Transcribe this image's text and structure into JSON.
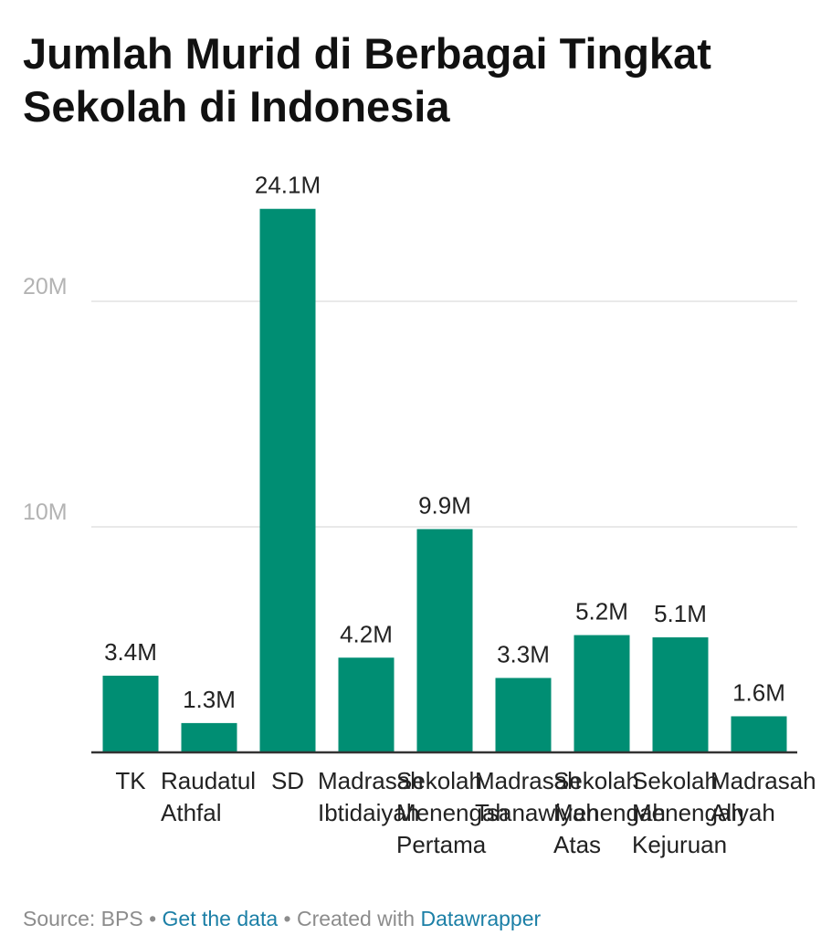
{
  "chart_data": {
    "type": "bar",
    "title": "Jumlah Murid di Berbagai Tingkat Sekolah di Indonesia",
    "categories": [
      [
        "TK"
      ],
      [
        "Raudatul",
        "Athfal"
      ],
      [
        "SD"
      ],
      [
        "Madrasah",
        "Ibtidaiyah"
      ],
      [
        "Sekolah",
        "Menengah",
        "Pertama"
      ],
      [
        "Madrasah",
        "Tsanawiyah"
      ],
      [
        "Sekolah",
        "Menengah",
        "Atas"
      ],
      [
        "Sekolah",
        "Menengah",
        "Kejuruan"
      ],
      [
        "Madrasah",
        "Aliyah"
      ]
    ],
    "values": [
      3.4,
      1.3,
      24.1,
      4.2,
      9.9,
      3.3,
      5.2,
      5.1,
      1.6
    ],
    "value_labels": [
      "3.4M",
      "1.3M",
      "24.1M",
      "4.2M",
      "9.9M",
      "3.3M",
      "5.2M",
      "5.1M",
      "1.6M"
    ],
    "unit": "M",
    "yticks": [
      {
        "value": 10,
        "label": "10M"
      },
      {
        "value": 20,
        "label": "20M"
      }
    ],
    "ylim": [
      0,
      25
    ],
    "grid": true,
    "bar_color": "#008e73"
  },
  "footer": {
    "source": "Source: BPS",
    "sep1": " • ",
    "get_data": "Get the data",
    "sep2": " • Created with ",
    "tool": "Datawrapper"
  }
}
